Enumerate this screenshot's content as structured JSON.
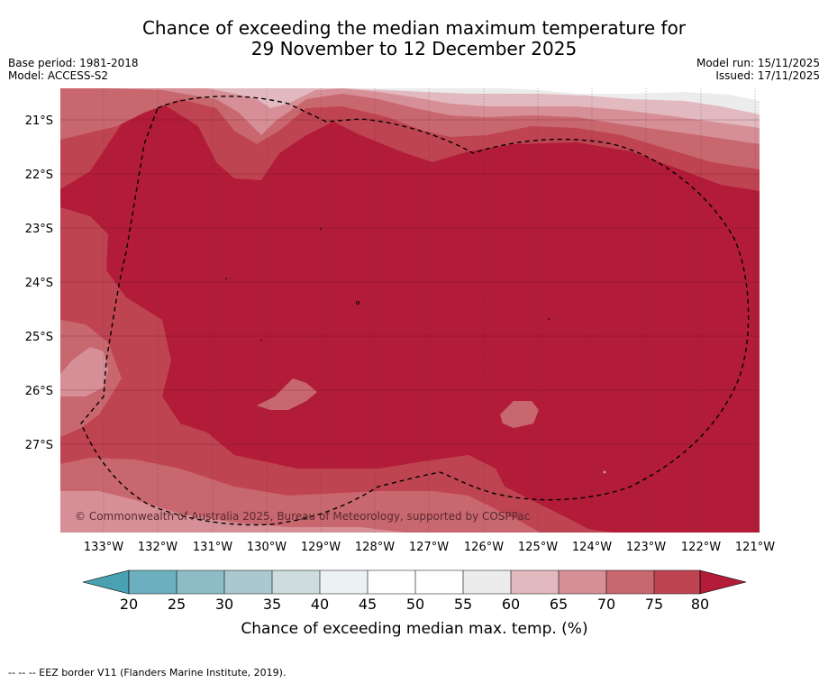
{
  "title": {
    "line1": "Chance of exceeding the median maximum temperature for",
    "line2": "29 November to 12 December 2025"
  },
  "meta": {
    "base_period": "Base period: 1981-2018",
    "model": "Model: ACCESS-S2",
    "model_run": "Model run: 15/11/2025",
    "issued": "Issued: 17/11/2025"
  },
  "map": {
    "longitude_labels": [
      "133°W",
      "132°W",
      "131°W",
      "130°W",
      "129°W",
      "128°W",
      "127°W",
      "126°W",
      "125°W",
      "124°W",
      "123°W",
      "122°W",
      "121°W"
    ],
    "latitude_labels": [
      "21°S",
      "22°S",
      "23°S",
      "24°S",
      "25°S",
      "26°S",
      "27°S"
    ],
    "copyright": "© Commonwealth of Australia 2025, Bureau of Meteorology, supported by COSPPac",
    "dominant_category": "> 80%"
  },
  "colorbar": {
    "ticks": [
      "20",
      "25",
      "30",
      "35",
      "40",
      "45",
      "50",
      "55",
      "60",
      "65",
      "70",
      "75",
      "80"
    ],
    "colors": {
      "below_20": "#4aa1b2",
      "b20_25": "#6cb0bf",
      "b25_30": "#8dbcc6",
      "b30_35": "#a9c9ce",
      "b35_40": "#cfdcde",
      "b40_45": "#ecf2f4",
      "b45_50": "#ffffff",
      "b50_55": "#ffffff",
      "b55_60": "#ececec",
      "b60_65": "#e2b9bf",
      "b65_70": "#d78f97",
      "b70_75": "#c9676f",
      "b75_80": "#bf4452",
      "above_80": "#b21c38"
    },
    "label": "Chance of exceeding median max. temp. (%)"
  },
  "footer": {
    "legend": "--  --  -- EEZ border V11 (Flanders Marine Institute, 2019)."
  }
}
